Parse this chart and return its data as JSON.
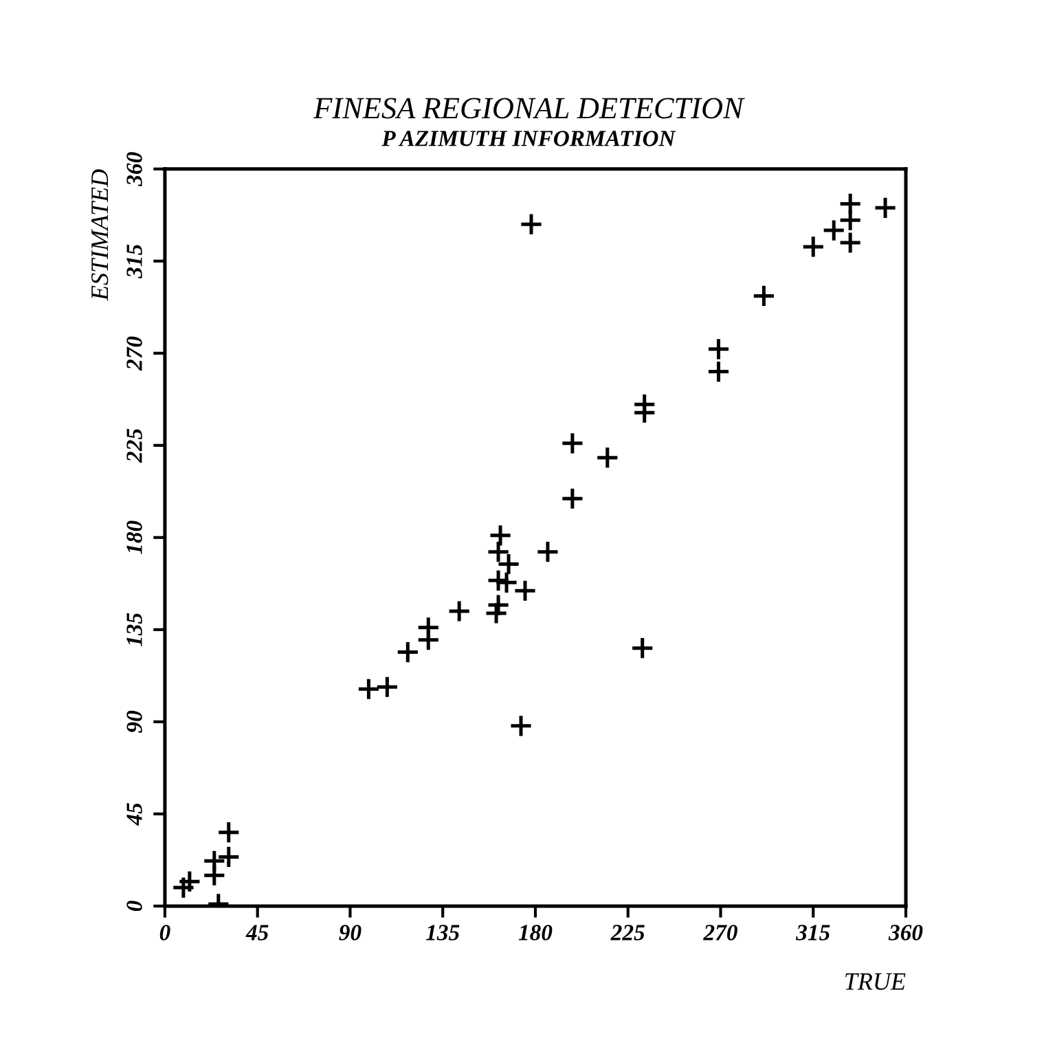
{
  "chart_data": {
    "type": "scatter",
    "title": "FINESA REGIONAL DETECTION",
    "subtitle": "P AZIMUTH INFORMATION",
    "xlabel": "TRUE",
    "ylabel": "ESTIMATED",
    "xlim": [
      0,
      360
    ],
    "ylim": [
      0,
      360
    ],
    "xticks": [
      0,
      45,
      90,
      135,
      180,
      225,
      270,
      315,
      360
    ],
    "yticks": [
      0,
      45,
      90,
      135,
      180,
      225,
      270,
      315,
      360
    ],
    "marker": "cross",
    "grid": false,
    "legend": false,
    "series": [
      {
        "color": "#000000",
        "x": [
          9,
          12,
          24,
          24,
          31,
          31,
          26,
          99,
          108,
          118,
          128,
          128,
          143,
          161,
          162,
          162,
          166,
          167,
          162,
          163,
          175,
          186,
          198,
          232,
          173,
          215,
          178,
          198,
          233,
          233,
          269,
          269,
          291,
          315,
          325,
          333,
          333,
          333,
          350
        ],
        "values": [
          9,
          12,
          15,
          22,
          24,
          36,
          1,
          106,
          107,
          124,
          136,
          130,
          144,
          143,
          147,
          159,
          158,
          167,
          173,
          181,
          154,
          173,
          199,
          126,
          88,
          219,
          333,
          226,
          245,
          241,
          272,
          261,
          298,
          322,
          330,
          343,
          335,
          324,
          341
        ]
      }
    ]
  }
}
